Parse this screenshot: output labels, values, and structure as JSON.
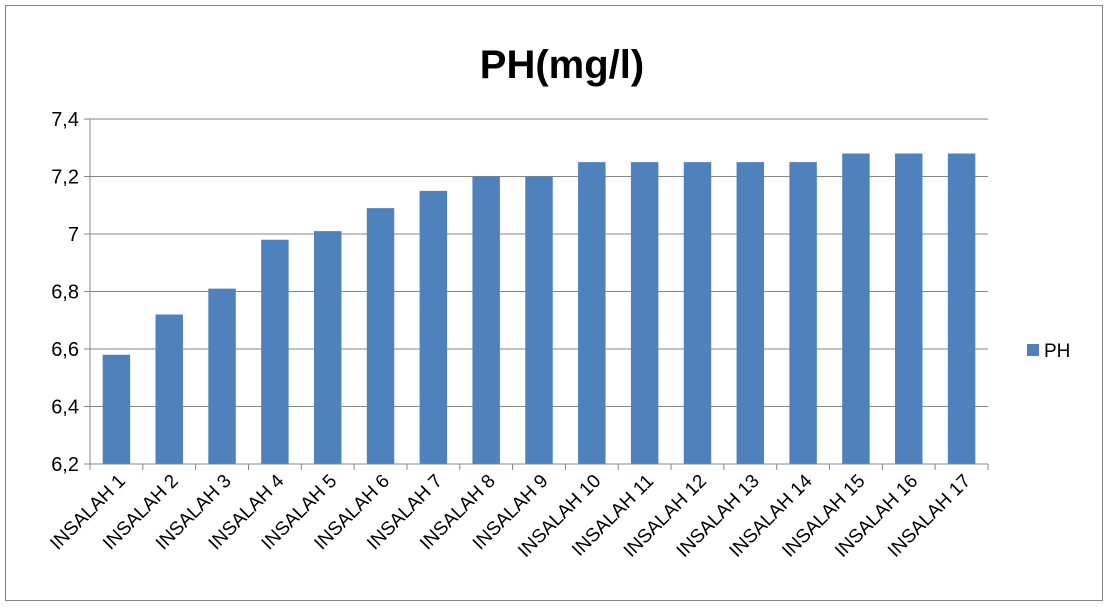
{
  "chart_data": {
    "type": "bar",
    "title": "PH(mg/l)",
    "categories": [
      "INSALAH 1",
      "INSALAH 2",
      "INSALAH 3",
      "INSALAH 4",
      "INSALAH 5",
      "INSALAH 6",
      "INSALAH 7",
      "INSALAH 8",
      "INSALAH 9",
      "INSALAH 10",
      "INSALAH 11",
      "INSALAH 12",
      "INSALAH 13",
      "INSALAH 14",
      "INSALAH 15",
      "INSALAH 16",
      "INSALAH 17"
    ],
    "series": [
      {
        "name": "PH",
        "color": "#4f81bd",
        "values": [
          6.58,
          6.72,
          6.81,
          6.98,
          7.01,
          7.09,
          7.15,
          7.2,
          7.2,
          7.25,
          7.25,
          7.25,
          7.25,
          7.25,
          7.28,
          7.28,
          7.28
        ]
      }
    ],
    "ylim": [
      6.2,
      7.4
    ],
    "yticks": [
      "6,2",
      "6,4",
      "6,6",
      "6,8",
      "7",
      "7,2",
      "7,4"
    ],
    "grid": true,
    "legend": "right"
  }
}
